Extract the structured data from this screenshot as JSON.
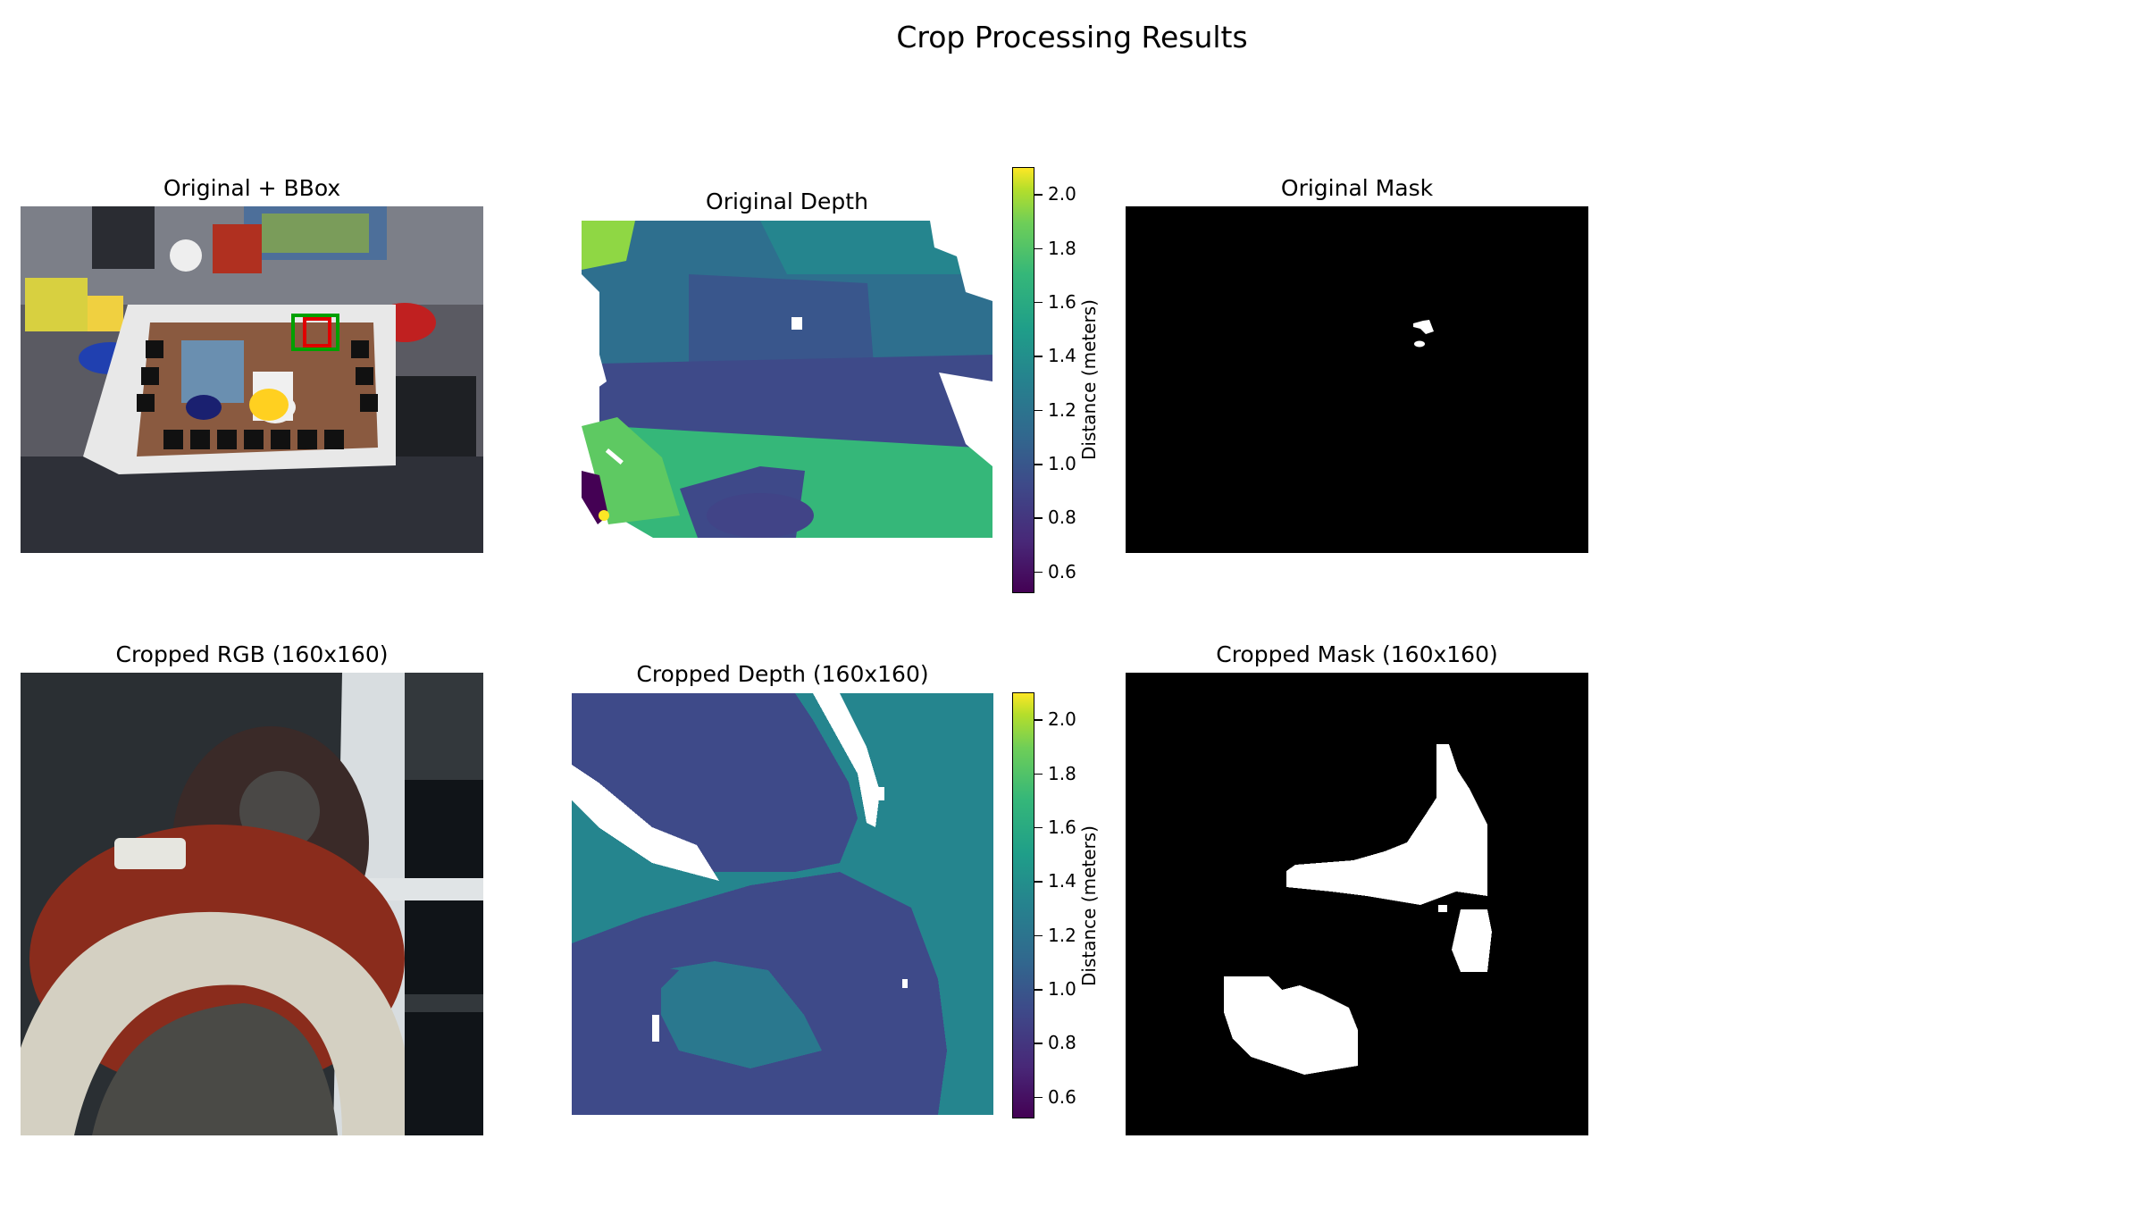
{
  "figure": {
    "title": "Crop Processing Results"
  },
  "panels": {
    "orig_rgb": {
      "title": "Original + BBox"
    },
    "orig_depth": {
      "title": "Original Depth"
    },
    "orig_mask": {
      "title": "Original Mask"
    },
    "crop_rgb": {
      "title": "Cropped RGB (160x160)"
    },
    "crop_depth": {
      "title": "Cropped Depth (160x160)"
    },
    "crop_mask": {
      "title": "Cropped Mask (160x160)"
    }
  },
  "colorbar": {
    "label": "Distance (meters)",
    "colormap": "viridis",
    "ticks": [
      "0.6",
      "0.8",
      "1.0",
      "1.2",
      "1.4",
      "1.6",
      "1.8",
      "2.0"
    ],
    "tick_values": [
      0.6,
      0.8,
      1.0,
      1.2,
      1.4,
      1.6,
      1.8,
      2.0
    ],
    "range": [
      0.52,
      2.1
    ]
  },
  "chart_data": [
    {
      "type": "heatmap",
      "title": "Original + BBox",
      "content": "RGB image with bounding boxes",
      "bbox_colors": [
        "#00a000",
        "#e00000"
      ]
    },
    {
      "type": "heatmap",
      "title": "Original Depth",
      "colormap": "viridis",
      "value_range": [
        0.52,
        2.1
      ],
      "colorbar_label": "Distance (meters)"
    },
    {
      "type": "heatmap",
      "title": "Original Mask",
      "content": "binary mask, small white region"
    },
    {
      "type": "heatmap",
      "title": "Cropped RGB (160x160)",
      "content": "cropped RGB patch"
    },
    {
      "type": "heatmap",
      "title": "Cropped Depth (160x160)",
      "colormap": "viridis",
      "value_range": [
        0.52,
        2.1
      ],
      "colorbar_label": "Distance (meters)"
    },
    {
      "type": "heatmap",
      "title": "Cropped Mask (160x160)",
      "content": "binary mask, white object regions"
    }
  ]
}
